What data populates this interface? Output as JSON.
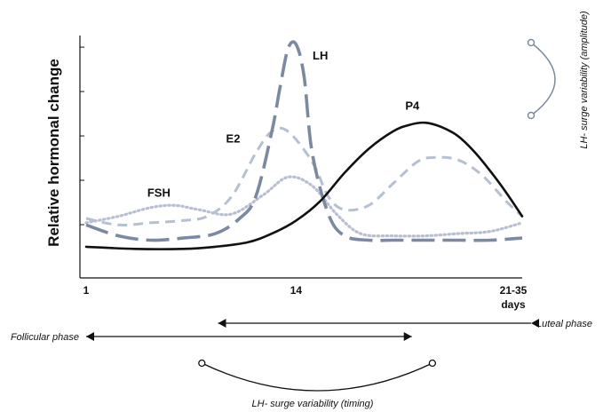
{
  "chart_data": {
    "type": "line",
    "title": "",
    "xlabel": "",
    "ylabel": "Relative hormonal change",
    "x_ticks": [
      "1",
      "14",
      "21-35\ndays"
    ],
    "x_tick_line1": [
      "1",
      "14",
      "21-35"
    ],
    "x_unit": "days",
    "xlim": [
      1,
      28
    ],
    "ylim": [
      0,
      1
    ],
    "grid": false,
    "series": [
      {
        "name": "FSH",
        "style": "dotted",
        "color": "#b9bfd3",
        "x": [
          1,
          3,
          5,
          6.5,
          8,
          10,
          12,
          13.5,
          15,
          16.5,
          18,
          20,
          22,
          24,
          26,
          28
        ],
        "y": [
          0.18,
          0.21,
          0.25,
          0.26,
          0.24,
          0.22,
          0.31,
          0.39,
          0.35,
          0.22,
          0.13,
          0.12,
          0.12,
          0.13,
          0.14,
          0.18
        ]
      },
      {
        "name": "E2",
        "style": "short-dash",
        "color": "#b5c0d1",
        "x": [
          1,
          3,
          5,
          7,
          8.5,
          10,
          11.5,
          12.5,
          13.5,
          15,
          16,
          17,
          18.5,
          20,
          21.5,
          22.5,
          24,
          25.5,
          27,
          28
        ],
        "y": [
          0.2,
          0.17,
          0.18,
          0.19,
          0.21,
          0.3,
          0.5,
          0.6,
          0.6,
          0.46,
          0.3,
          0.24,
          0.26,
          0.36,
          0.46,
          0.48,
          0.47,
          0.4,
          0.28,
          0.21
        ]
      },
      {
        "name": "LH",
        "style": "long-dash",
        "color": "#7b8aa2",
        "x": [
          1,
          3,
          5,
          7,
          9,
          10.5,
          11.5,
          12.5,
          13,
          13.5,
          14,
          14.5,
          15,
          16,
          17,
          18.5,
          20,
          22,
          24,
          26,
          28
        ],
        "y": [
          0.17,
          0.12,
          0.1,
          0.11,
          0.13,
          0.2,
          0.3,
          0.6,
          0.8,
          0.98,
          1.0,
          0.85,
          0.5,
          0.22,
          0.12,
          0.1,
          0.1,
          0.1,
          0.1,
          0.1,
          0.11
        ]
      },
      {
        "name": "P4",
        "style": "solid",
        "color": "#111111",
        "x": [
          1,
          4,
          7,
          9,
          11,
          12.5,
          14,
          15.5,
          17,
          18.5,
          20,
          21,
          22,
          23,
          24,
          25,
          26,
          27,
          28
        ],
        "y": [
          0.07,
          0.06,
          0.06,
          0.07,
          0.09,
          0.13,
          0.19,
          0.28,
          0.41,
          0.52,
          0.6,
          0.63,
          0.64,
          0.62,
          0.58,
          0.51,
          0.42,
          0.32,
          0.21
        ]
      }
    ],
    "series_label_anchor": [
      {
        "name": "FSH",
        "x": 5.5,
        "y": 0.3
      },
      {
        "name": "E2",
        "x": 10.1,
        "y": 0.55
      },
      {
        "name": "LH",
        "x": 15.5,
        "y": 0.93
      },
      {
        "name": "P4",
        "x": 21.2,
        "y": 0.7
      }
    ],
    "annotations": {
      "luteal_phase": "Luteal phase",
      "follicular_phase": "Follicular phase",
      "lh_timing": "LH- surge variability (timing)",
      "lh_amplitude": "LH- surge variability (amplitude)"
    },
    "phase_ranges": {
      "luteal": [
        9,
        28
      ],
      "follicular": [
        1,
        21
      ]
    },
    "timing_range": [
      8,
      22
    ]
  },
  "colors": {
    "axis": "#111111",
    "annotation_line": "#111111",
    "arc": "#111111",
    "amplitude_arc": "#7b8aa2"
  }
}
